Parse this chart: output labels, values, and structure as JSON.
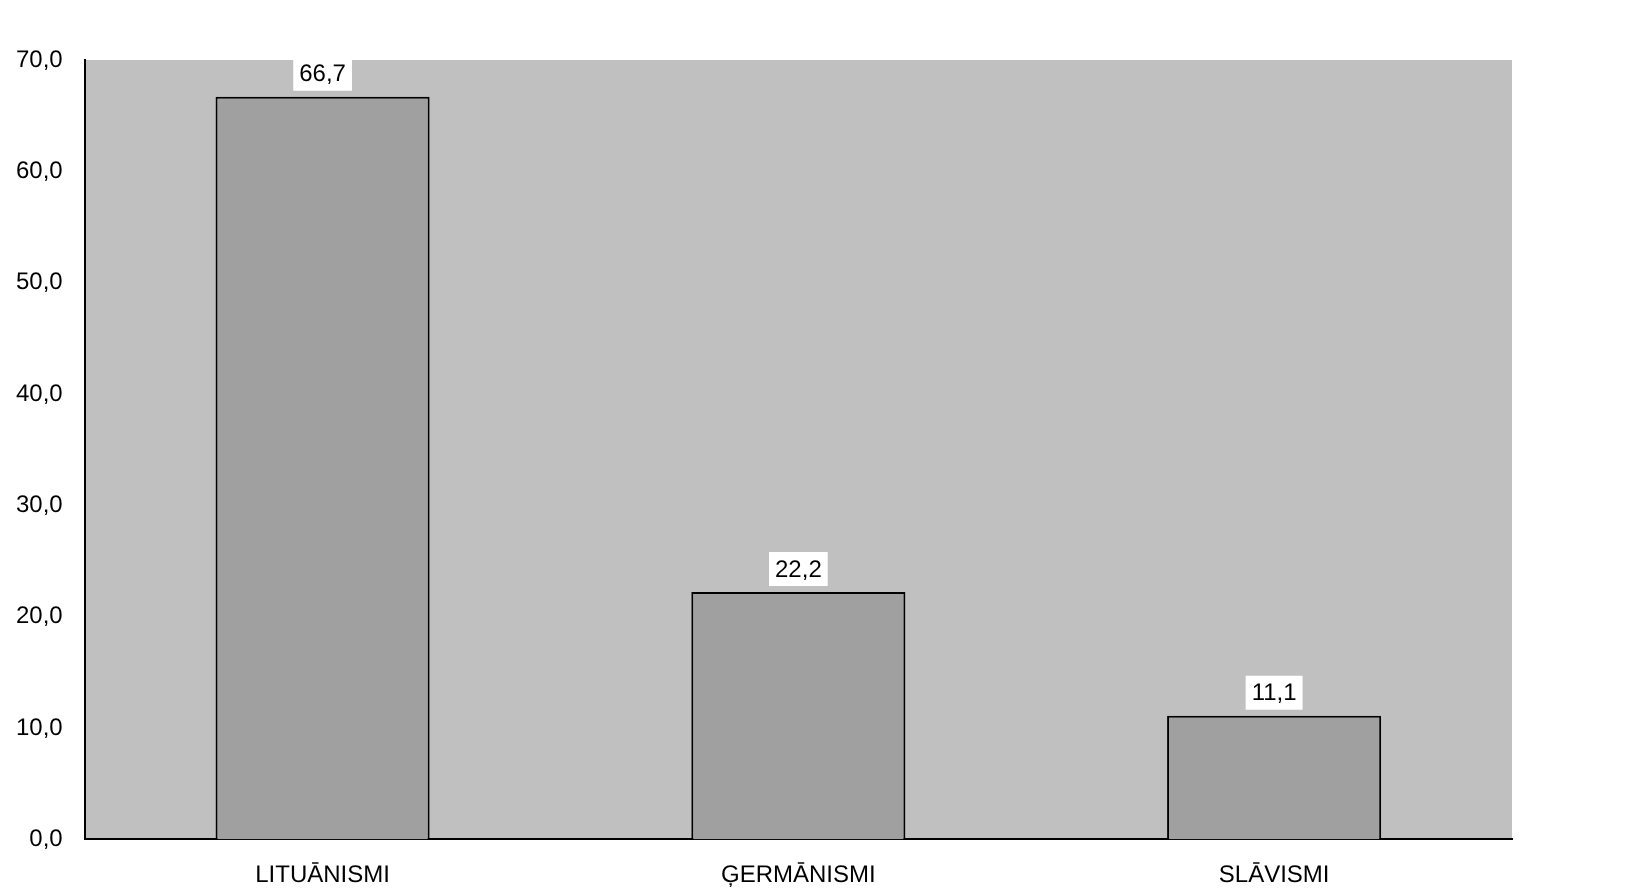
{
  "chart_data": {
    "type": "bar",
    "categories": [
      "LITUĀNISMI",
      "ĢERMĀNISMI",
      "SLĀVISMI"
    ],
    "values": [
      66.7,
      22.2,
      11.1
    ],
    "value_labels": [
      "66,7",
      "22,2",
      "11,1"
    ],
    "color": "#a0a0a0",
    "ylim": [
      0,
      70
    ],
    "yticks": [
      {
        "value": 0,
        "label": "0,0"
      },
      {
        "value": 10,
        "label": "10,0"
      },
      {
        "value": 20,
        "label": "20,0"
      },
      {
        "value": 30,
        "label": "30,0"
      },
      {
        "value": 40,
        "label": "40,0"
      },
      {
        "value": 50,
        "label": "50,0"
      },
      {
        "value": 60,
        "label": "60,0"
      },
      {
        "value": 70,
        "label": "70,0"
      }
    ],
    "grid": false,
    "legend": false
  }
}
